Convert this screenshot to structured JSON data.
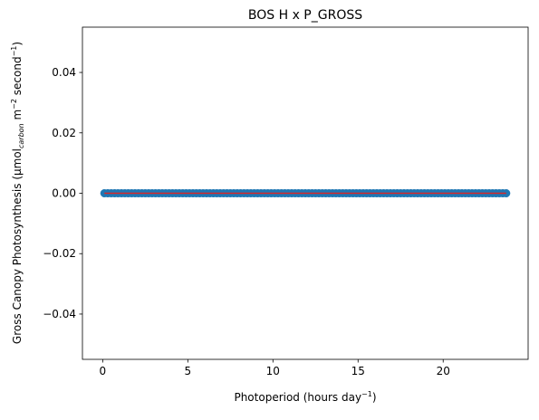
{
  "chart_data": {
    "type": "scatter",
    "title": "BOS H x P_GROSS",
    "xlabel": {
      "base": "Photoperiod (hours day",
      "sup": "−1",
      "tail": ")"
    },
    "ylabel": {
      "a": "Gross Canopy Photosynthesis (µmol",
      "sub": "carbon",
      "b": " m",
      "sup1": "−2",
      "c": " second",
      "sup2": "−1",
      "d": ")"
    },
    "xlim": [
      -1.19,
      24.99
    ],
    "ylim": [
      -0.055,
      0.055
    ],
    "xticks": [
      0,
      5,
      10,
      15,
      20
    ],
    "xtick_labels": [
      "0",
      "5",
      "10",
      "15",
      "20"
    ],
    "yticks": [
      0.04,
      0.02,
      0.0,
      -0.02,
      -0.04
    ],
    "ytick_labels": [
      "0.04",
      "0.02",
      "0.00",
      "−0.02",
      "−0.04"
    ],
    "grid": false,
    "series": [
      {
        "kind": "scatter",
        "x_start": 0.1,
        "x_end": 23.7,
        "x_step": 0.2,
        "y_constant": 0.0
      },
      {
        "kind": "line",
        "x": [
          0.1,
          23.7
        ],
        "y": [
          0.0,
          0.0
        ]
      }
    ],
    "colors": {
      "markers": "#1f77b4",
      "line": "#d62728",
      "axes": "#000000"
    }
  }
}
